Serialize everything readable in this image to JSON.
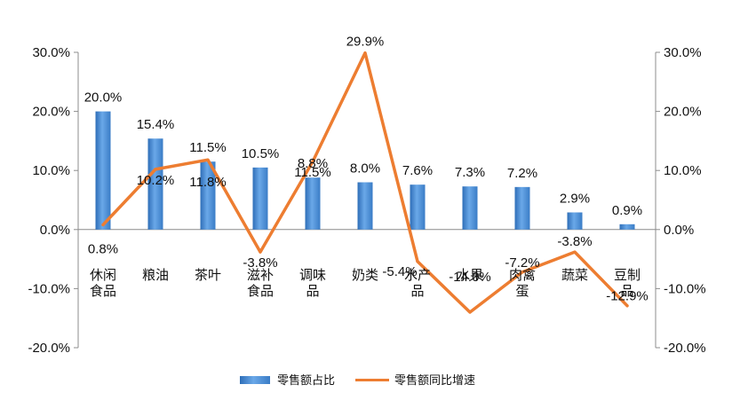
{
  "chart_data": {
    "type": "bar",
    "title": "",
    "categories": [
      "休闲食品",
      "粮油",
      "茶叶",
      "滋补食品",
      "调味品",
      "奶类",
      "水产品",
      "水果",
      "肉禽蛋",
      "蔬菜",
      "豆制品"
    ],
    "series": [
      {
        "name": "零售额占比",
        "type": "bar",
        "axis": "left",
        "color": "#4a8fd6",
        "values": [
          20.0,
          15.4,
          11.5,
          10.5,
          8.8,
          8.0,
          7.6,
          7.3,
          7.2,
          2.9,
          0.9
        ],
        "labels": [
          "20.0%",
          "15.4%",
          "11.5%",
          "10.5%",
          "8.8%",
          "8.0%",
          "7.6%",
          "7.3%",
          "7.2%",
          "2.9%",
          "0.9%"
        ]
      },
      {
        "name": "零售额同比增速",
        "type": "line",
        "axis": "right",
        "color": "#ed7d31",
        "values": [
          0.8,
          10.2,
          11.8,
          -3.8,
          11.5,
          29.9,
          -5.4,
          -14.0,
          -7.2,
          -3.8,
          -12.9
        ],
        "labels": [
          "0.8%",
          "10.2%",
          "11.8%",
          "-3.8%",
          "11.5%",
          "29.9%",
          "-5.4%",
          "-14.0%",
          "-7.2%",
          "-3.8%",
          "-12.9%"
        ]
      }
    ],
    "y_left": {
      "min": -20,
      "max": 30,
      "ticks": [
        "-20.0%",
        "-10.0%",
        "0.0%",
        "10.0%",
        "20.0%",
        "30.0%"
      ]
    },
    "y_right": {
      "min": -20,
      "max": 30,
      "ticks": [
        "-20.0%",
        "-10.0%",
        "0.0%",
        "10.0%",
        "20.0%",
        "30.0%"
      ]
    },
    "grid": false,
    "legend": {
      "position": "bottom",
      "entries": [
        "零售额占比",
        "零售额同比增速"
      ]
    }
  }
}
